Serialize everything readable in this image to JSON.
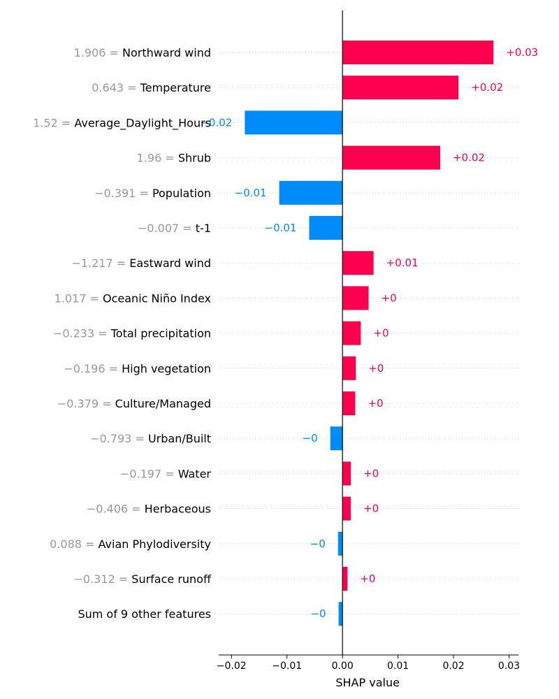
{
  "chart_data": {
    "type": "bar",
    "orientation": "horizontal",
    "xlabel": "SHAP value",
    "xlim": [
      -0.0223,
      0.0317
    ],
    "xticks": [
      -0.02,
      -0.01,
      0.0,
      0.01,
      0.02,
      0.03
    ],
    "xtick_labels": [
      "−0.02",
      "−0.01",
      "0.00",
      "0.01",
      "0.02",
      "0.03"
    ],
    "grid": "horizontal dotted row guides",
    "colors": {
      "positive": "#ff0051",
      "negative": "#008bfb",
      "feature_value": "#999999",
      "axis": "#000000"
    },
    "features": [
      {
        "feature_value": "1.906 =",
        "name": "Northward wind",
        "value": 0.0272,
        "label": "+0.03"
      },
      {
        "feature_value": "0.643 =",
        "name": "Temperature",
        "value": 0.0209,
        "label": "+0.02"
      },
      {
        "feature_value": "1.52 =",
        "name": "Average_Daylight_Hours",
        "value": -0.0176,
        "label": "−0.02"
      },
      {
        "feature_value": "1.96 =",
        "name": "Shrub",
        "value": 0.0176,
        "label": "+0.02"
      },
      {
        "feature_value": "−0.391 =",
        "name": "Population",
        "value": -0.0114,
        "label": "−0.01"
      },
      {
        "feature_value": "−0.007 =",
        "name": "t-1",
        "value": -0.006,
        "label": "−0.01"
      },
      {
        "feature_value": "−1.217 =",
        "name": "Eastward wind",
        "value": 0.0056,
        "label": "+0.01"
      },
      {
        "feature_value": "1.017 =",
        "name": "Oceanic Niño Index",
        "value": 0.0047,
        "label": "+0"
      },
      {
        "feature_value": "−0.233 =",
        "name": "Total precipitation",
        "value": 0.0033,
        "label": "+0"
      },
      {
        "feature_value": "−0.196 =",
        "name": "High vegetation",
        "value": 0.0024,
        "label": "+0"
      },
      {
        "feature_value": "−0.379 =",
        "name": "Culture/Managed",
        "value": 0.0023,
        "label": "+0"
      },
      {
        "feature_value": "−0.793 =",
        "name": "Urban/Built",
        "value": -0.0022,
        "label": "−0"
      },
      {
        "feature_value": "−0.197 =",
        "name": "Water",
        "value": 0.0015,
        "label": "+0"
      },
      {
        "feature_value": "−0.406 =",
        "name": "Herbaceous",
        "value": 0.0015,
        "label": "+0"
      },
      {
        "feature_value": "0.088 =",
        "name": "Avian Phylodiversity",
        "value": -0.0008,
        "label": "−0"
      },
      {
        "feature_value": "−0.312 =",
        "name": "Surface runoff",
        "value": 0.0009,
        "label": "+0"
      },
      {
        "feature_value": "",
        "name": "Sum of 9 other features",
        "value": -0.0007,
        "label": "−0"
      }
    ]
  }
}
